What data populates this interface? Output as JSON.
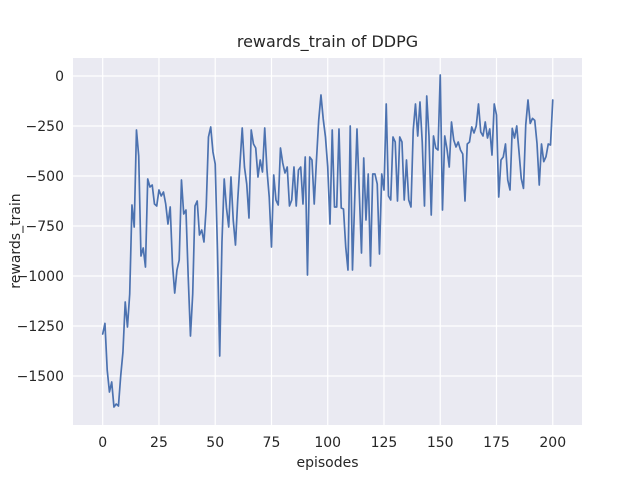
{
  "figure": {
    "title": "rewards_train of DDPG",
    "xlabel": "episodes",
    "ylabel": "rewards_train"
  },
  "chart_data": {
    "type": "line",
    "title": "rewards_train of DDPG",
    "xlabel": "episodes",
    "ylabel": "rewards_train",
    "series_name": "rewards_train",
    "x_start": 0,
    "x_step": 1,
    "values": [
      -1290,
      -1237,
      -1470,
      -1580,
      -1530,
      -1655,
      -1640,
      -1650,
      -1500,
      -1380,
      -1130,
      -1255,
      -1090,
      -645,
      -755,
      -270,
      -400,
      -900,
      -860,
      -955,
      -515,
      -555,
      -545,
      -640,
      -650,
      -570,
      -600,
      -580,
      -640,
      -740,
      -655,
      -940,
      -1085,
      -970,
      -920,
      -520,
      -690,
      -670,
      -1005,
      -1300,
      -1090,
      -650,
      -625,
      -795,
      -770,
      -830,
      -655,
      -305,
      -255,
      -380,
      -440,
      -870,
      -1400,
      -830,
      -515,
      -660,
      -755,
      -505,
      -720,
      -845,
      -620,
      -440,
      -260,
      -455,
      -540,
      -710,
      -270,
      -340,
      -360,
      -505,
      -420,
      -480,
      -260,
      -470,
      -605,
      -855,
      -495,
      -620,
      -645,
      -360,
      -435,
      -485,
      -455,
      -650,
      -620,
      -455,
      -650,
      -470,
      -455,
      -640,
      -405,
      -995,
      -405,
      -420,
      -640,
      -420,
      -220,
      -95,
      -215,
      -305,
      -455,
      -740,
      -270,
      -655,
      -655,
      -265,
      -660,
      -665,
      -855,
      -970,
      -250,
      -970,
      -615,
      -265,
      -575,
      -885,
      -410,
      -720,
      -490,
      -950,
      -490,
      -490,
      -540,
      -890,
      -490,
      -570,
      -140,
      -600,
      -620,
      -305,
      -330,
      -625,
      -305,
      -330,
      -620,
      -420,
      -620,
      -655,
      -270,
      -140,
      -300,
      -130,
      -330,
      -650,
      -100,
      -300,
      -695,
      -300,
      -360,
      -370,
      5,
      -670,
      -300,
      -365,
      -455,
      -230,
      -320,
      -355,
      -330,
      -370,
      -390,
      -625,
      -340,
      -330,
      -255,
      -285,
      -250,
      -140,
      -280,
      -300,
      -230,
      -310,
      -265,
      -395,
      -140,
      -195,
      -605,
      -420,
      -405,
      -340,
      -520,
      -570,
      -262,
      -310,
      -250,
      -378,
      -512,
      -562,
      -245,
      -120,
      -237,
      -212,
      -222,
      -337,
      -545,
      -340,
      -428,
      -403,
      -340,
      -345,
      -120
    ],
    "xticks": {
      "values": [
        0,
        25,
        50,
        75,
        100,
        125,
        150,
        175,
        200
      ],
      "labels": [
        "0",
        "25",
        "50",
        "75",
        "100",
        "125",
        "150",
        "175",
        "200"
      ]
    },
    "yticks": {
      "values": [
        0,
        -250,
        -500,
        -750,
        -1000,
        -1250,
        -1500
      ],
      "labels": [
        "0",
        "−250",
        "−500",
        "−750",
        "−1000",
        "−1250",
        "−1500"
      ]
    },
    "xlim": [
      -13.2,
      213.0
    ],
    "ylim": [
      -1745,
      90
    ],
    "grid": true,
    "legend": null,
    "colors": {
      "line": "#4c72b0",
      "axes_bg": "#eaeaf2",
      "grid": "#ffffff",
      "figure_bg": "#ffffff",
      "text": "#262626"
    }
  }
}
